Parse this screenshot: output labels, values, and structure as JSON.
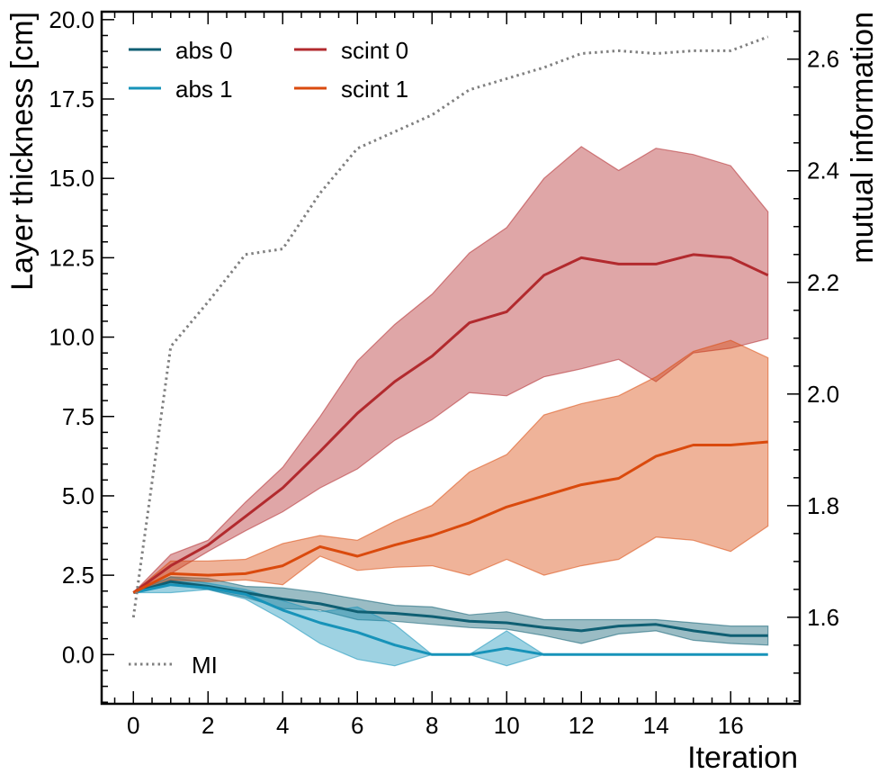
{
  "chart_data": {
    "type": "line",
    "xlabel": "Iteration",
    "ylabel": "Layer thickness [cm]",
    "y2label": "mutual information",
    "xlim": [
      -0.85,
      17.85
    ],
    "ylim": [
      -1.55,
      20.25
    ],
    "y2lim": [
      1.445,
      2.685
    ],
    "xticks": [
      "0",
      "2",
      "4",
      "6",
      "8",
      "10",
      "12",
      "14",
      "16"
    ],
    "yticks": [
      "0.0",
      "2.5",
      "5.0",
      "7.5",
      "10.0",
      "12.5",
      "15.0",
      "17.5",
      "20.0"
    ],
    "y2ticks": [
      "1.6",
      "1.8",
      "2.0",
      "2.2",
      "2.4",
      "2.6"
    ],
    "legend_position": "upper-left",
    "legend2_position": "lower-left",
    "x": [
      0,
      1,
      2,
      3,
      4,
      5,
      6,
      7,
      8,
      9,
      10,
      11,
      12,
      13,
      14,
      15,
      16,
      17
    ],
    "series": [
      {
        "name": "abs 0",
        "color": "#0f5f73",
        "values": [
          1.95,
          2.3,
          2.15,
          1.95,
          1.75,
          1.6,
          1.35,
          1.3,
          1.2,
          1.05,
          1.0,
          0.85,
          0.75,
          0.9,
          0.95,
          0.75,
          0.6,
          0.6
        ],
        "lower": [
          1.95,
          2.2,
          2.05,
          1.8,
          1.45,
          1.4,
          1.1,
          1.05,
          0.95,
          0.85,
          0.8,
          0.6,
          0.35,
          0.65,
          0.75,
          0.45,
          0.35,
          0.3
        ],
        "upper": [
          1.95,
          2.45,
          2.4,
          2.15,
          2.1,
          1.95,
          1.75,
          1.55,
          1.5,
          1.25,
          1.35,
          1.1,
          1.1,
          1.1,
          1.1,
          1.0,
          0.9,
          0.9
        ],
        "band_opacity": 0.42
      },
      {
        "name": "abs 1",
        "color": "#1793b9",
        "values": [
          1.95,
          2.2,
          2.1,
          1.9,
          1.4,
          1.0,
          0.7,
          0.3,
          0.0,
          0.0,
          0.2,
          0.0,
          0.0,
          0.0,
          0.0,
          0.0,
          0.0,
          0.0
        ],
        "lower": [
          1.95,
          1.95,
          2.05,
          1.75,
          1.1,
          0.35,
          -0.15,
          -0.35,
          0.0,
          0.0,
          -0.35,
          0.0,
          0.0,
          0.0,
          0.0,
          0.0,
          0.0,
          0.0
        ],
        "upper": [
          1.95,
          2.45,
          2.25,
          2.05,
          1.7,
          1.35,
          1.5,
          0.95,
          0.0,
          0.0,
          0.75,
          0.0,
          0.0,
          0.0,
          0.0,
          0.0,
          0.0,
          0.0
        ],
        "band_opacity": 0.42
      },
      {
        "name": "scint 0",
        "color": "#b22a2e",
        "values": [
          1.95,
          2.8,
          3.45,
          4.35,
          5.25,
          6.4,
          7.6,
          8.6,
          9.4,
          10.45,
          10.8,
          11.95,
          12.5,
          12.3,
          12.3,
          12.6,
          12.5,
          11.95
        ],
        "lower": [
          1.95,
          2.55,
          3.25,
          3.9,
          4.5,
          5.25,
          5.85,
          6.75,
          7.4,
          8.25,
          8.15,
          8.75,
          9.0,
          9.3,
          8.6,
          9.5,
          9.65,
          9.95
        ],
        "upper": [
          1.95,
          3.15,
          3.6,
          4.8,
          5.9,
          7.5,
          9.25,
          10.4,
          11.35,
          12.65,
          13.45,
          15.0,
          16.0,
          15.25,
          15.95,
          15.75,
          15.4,
          13.95
        ],
        "band_opacity": 0.42
      },
      {
        "name": "scint 1",
        "color": "#da4a0d",
        "values": [
          1.95,
          2.55,
          2.5,
          2.55,
          2.8,
          3.4,
          3.1,
          3.45,
          3.75,
          4.15,
          4.65,
          5.0,
          5.35,
          5.55,
          6.25,
          6.6,
          6.6,
          6.7
        ],
        "lower": [
          1.95,
          2.35,
          2.3,
          2.35,
          2.2,
          3.1,
          2.65,
          2.75,
          2.8,
          2.5,
          3.0,
          2.5,
          2.8,
          3.0,
          3.7,
          3.6,
          3.25,
          4.05
        ],
        "upper": [
          1.95,
          2.95,
          2.95,
          3.0,
          3.5,
          3.75,
          3.6,
          4.2,
          4.7,
          5.75,
          6.3,
          7.55,
          7.9,
          8.15,
          8.75,
          9.55,
          9.9,
          9.35
        ],
        "band_opacity": 0.42
      }
    ],
    "mi_series": {
      "name": "MI",
      "color": "#808080",
      "axis": "right",
      "values": [
        1.6,
        2.085,
        2.165,
        2.25,
        2.26,
        2.36,
        2.44,
        2.47,
        2.5,
        2.545,
        2.565,
        2.585,
        2.61,
        2.615,
        2.61,
        2.615,
        2.615,
        2.64
      ]
    }
  }
}
